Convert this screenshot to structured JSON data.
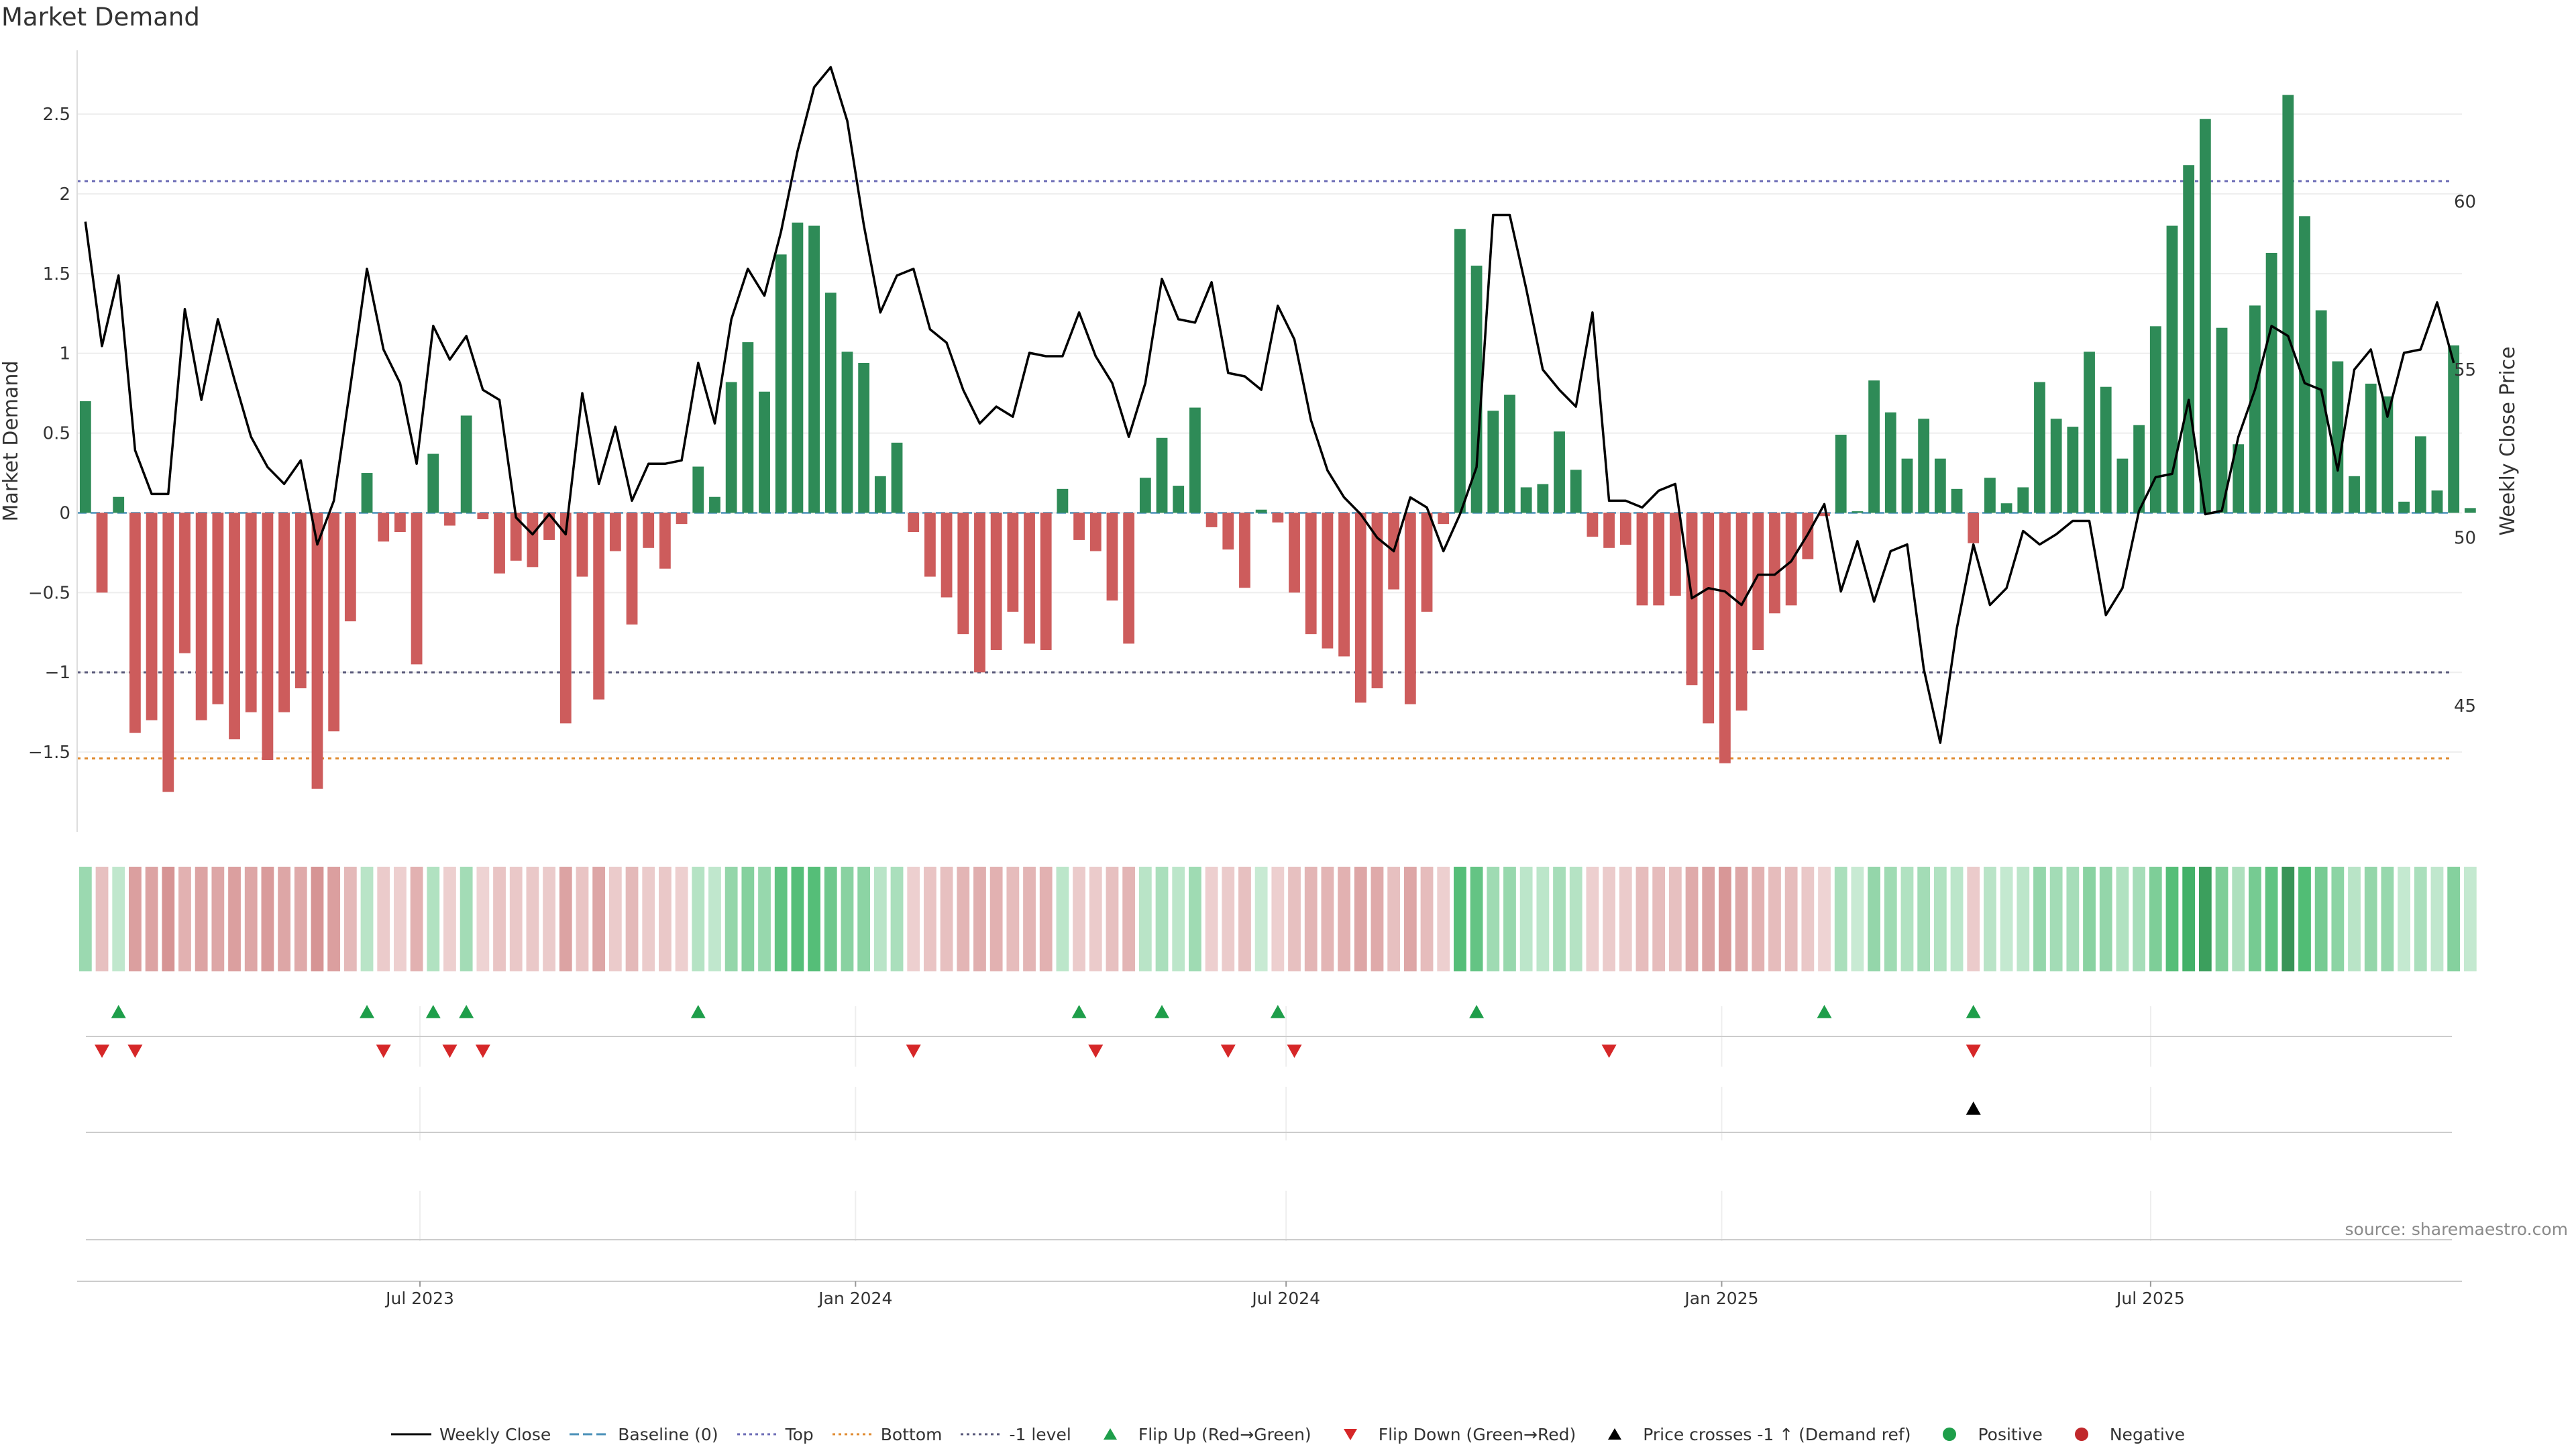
{
  "title": "Market Demand",
  "source": "source: sharemaestro.com",
  "colors": {
    "positive_bar": "#2e8b57",
    "negative_bar": "#cd5c5c",
    "price_line": "#000000",
    "top_line": "#6b6bb5",
    "bottom_line": "#e08a2e",
    "level_line": "#555577",
    "baseline": "#4a90b8",
    "flip_up": "#1e9e4a",
    "flip_down": "#d62728",
    "cross_marker": "#000000"
  },
  "legend": [
    {
      "key": "weekly_close",
      "label": "Weekly Close",
      "style": "solid-line",
      "color": "#000000"
    },
    {
      "key": "baseline",
      "label": "Baseline (0)",
      "style": "dash-line",
      "color": "#4a90b8"
    },
    {
      "key": "top",
      "label": "Top",
      "style": "dot-line",
      "color": "#6b6bb5"
    },
    {
      "key": "bottom",
      "label": "Bottom",
      "style": "dot-line",
      "color": "#e08a2e"
    },
    {
      "key": "level",
      "label": "-1 level",
      "style": "dot-line",
      "color": "#555577"
    },
    {
      "key": "flip_up",
      "label": "Flip Up (Red→Green)",
      "style": "triangle-up",
      "color": "#1e9e4a"
    },
    {
      "key": "flip_down",
      "label": "Flip Down (Green→Red)",
      "style": "triangle-down",
      "color": "#d62728"
    },
    {
      "key": "cross",
      "label": "Price crosses -1 ↑ (Demand ref)",
      "style": "triangle-up",
      "color": "#000000"
    },
    {
      "key": "positive",
      "label": "Positive",
      "style": "dot",
      "color": "#1e9e4a"
    },
    {
      "key": "negative",
      "label": "Negative",
      "style": "dot",
      "color": "#c0282b"
    }
  ],
  "chart_data": {
    "type": "bar",
    "title": "Market Demand",
    "ylabel": "Market Demand",
    "y2label": "Weekly Close Price",
    "ylim": [
      -2.0,
      2.9
    ],
    "y2lim": [
      41.25,
      64.5
    ],
    "yticks": [
      -1.5,
      -1,
      -0.5,
      0,
      0.5,
      1,
      1.5,
      2,
      2.5
    ],
    "ytick_labels": [
      "−1.5",
      "−1",
      "−0.5",
      "0",
      "0.5",
      "1",
      "1.5",
      "2",
      "2.5"
    ],
    "y2ticks": [
      45,
      50,
      55,
      60
    ],
    "y2tick_labels": [
      "45",
      "50",
      "55",
      "60"
    ],
    "reference_lines": {
      "top": 2.08,
      "bottom": -1.54,
      "minus_one": -1.0,
      "baseline": 0
    },
    "x_range": [
      -0.5,
      143.5
    ],
    "x_ticks": [
      {
        "index": 20.2,
        "label": "Jul 2023"
      },
      {
        "index": 46.5,
        "label": "Jan 2024"
      },
      {
        "index": 72.5,
        "label": "Jul 2024"
      },
      {
        "index": 98.8,
        "label": "Jan 2025"
      },
      {
        "index": 124.7,
        "label": "Jul 2025"
      }
    ],
    "demand": [
      0.7,
      -0.5,
      0.1,
      -1.38,
      -1.3,
      -1.75,
      -0.88,
      -1.3,
      -1.2,
      -1.42,
      -1.25,
      -1.55,
      -1.25,
      -1.1,
      -1.73,
      -1.37,
      -0.68,
      0.25,
      -0.18,
      -0.12,
      -0.95,
      0.37,
      -0.08,
      0.61,
      -0.04,
      -0.38,
      -0.3,
      -0.34,
      -0.17,
      -1.32,
      -0.4,
      -1.17,
      -0.24,
      -0.7,
      -0.22,
      -0.35,
      -0.07,
      0.29,
      0.1,
      0.82,
      1.07,
      0.76,
      1.62,
      1.82,
      1.8,
      1.38,
      1.01,
      0.94,
      0.23,
      0.44,
      -0.12,
      -0.4,
      -0.53,
      -0.76,
      -1.0,
      -0.86,
      -0.62,
      -0.82,
      -0.86,
      0.15,
      -0.17,
      -0.24,
      -0.55,
      -0.82,
      0.22,
      0.47,
      0.17,
      0.66,
      -0.09,
      -0.23,
      -0.47,
      0.02,
      -0.06,
      -0.5,
      -0.76,
      -0.85,
      -0.9,
      -1.19,
      -1.1,
      -0.48,
      -1.2,
      -0.62,
      -0.07,
      1.78,
      1.55,
      0.64,
      0.74,
      0.16,
      0.18,
      0.51,
      0.27,
      -0.15,
      -0.22,
      -0.2,
      -0.58,
      -0.58,
      -0.52,
      -1.08,
      -1.32,
      -1.57,
      -1.24,
      -0.86,
      -0.63,
      -0.58,
      -0.29,
      -0.02,
      0.49,
      0.01,
      0.83,
      0.63,
      0.34,
      0.59,
      0.34,
      0.15,
      -0.19,
      0.22,
      0.06,
      0.16,
      0.82,
      0.59,
      0.54,
      1.01,
      0.79,
      0.34,
      0.55,
      1.17,
      1.8,
      2.18,
      2.47,
      1.16,
      0.43,
      1.3,
      1.63,
      2.62,
      1.86,
      1.27,
      0.95,
      0.23,
      0.81,
      0.73,
      0.07,
      0.48,
      0.14,
      1.05,
      0.03
    ],
    "weekly_close": [
      59.4,
      55.7,
      57.8,
      52.6,
      51.3,
      51.3,
      56.8,
      54.1,
      56.5,
      54.7,
      53.0,
      52.1,
      51.6,
      52.3,
      49.8,
      51.1,
      54.5,
      58.0,
      55.6,
      54.6,
      52.2,
      56.3,
      55.3,
      56.0,
      54.4,
      54.1,
      50.6,
      50.1,
      50.7,
      50.1,
      54.3,
      51.6,
      53.3,
      51.1,
      52.2,
      52.2,
      52.3,
      55.2,
      53.4,
      56.5,
      58.0,
      57.2,
      59.1,
      61.5,
      63.4,
      64.0,
      62.4,
      59.3,
      56.7,
      57.8,
      58.0,
      56.2,
      55.8,
      54.4,
      53.4,
      53.9,
      53.6,
      55.5,
      55.4,
      55.4,
      56.7,
      55.4,
      54.6,
      53.0,
      54.6,
      57.7,
      56.5,
      56.4,
      57.6,
      54.9,
      54.8,
      54.4,
      56.9,
      55.9,
      53.5,
      52.0,
      51.2,
      50.7,
      50.0,
      49.6,
      51.2,
      50.9,
      49.6,
      50.7,
      52.1,
      59.6,
      59.6,
      57.4,
      55.0,
      54.4,
      53.9,
      56.7,
      51.1,
      51.1,
      50.9,
      51.4,
      51.6,
      48.2,
      48.5,
      48.4,
      48.0,
      48.9,
      48.9,
      49.3,
      50.1,
      51.0,
      48.4,
      49.9,
      48.1,
      49.6,
      49.8,
      46.1,
      43.9,
      47.3,
      49.8,
      48.0,
      48.5,
      50.2,
      49.8,
      50.1,
      50.5,
      50.5,
      47.7,
      48.5,
      50.8,
      51.8,
      51.9,
      54.1,
      50.7,
      50.8,
      53.0,
      54.4,
      56.3,
      56.0,
      54.6,
      54.4,
      52.0,
      55.0,
      55.6,
      53.6,
      55.5,
      55.6,
      57.0,
      55.2
    ],
    "flip_up_indices": [
      2,
      17,
      21,
      23,
      37,
      60,
      65,
      72,
      84,
      105,
      114
    ],
    "flip_down_indices": [
      1,
      3,
      18,
      22,
      24,
      50,
      61,
      69,
      73,
      92,
      114
    ],
    "cross_up_indices": [
      114
    ],
    "heat_strip_values": "same as demand (cell color encodes sign and magnitude)"
  }
}
